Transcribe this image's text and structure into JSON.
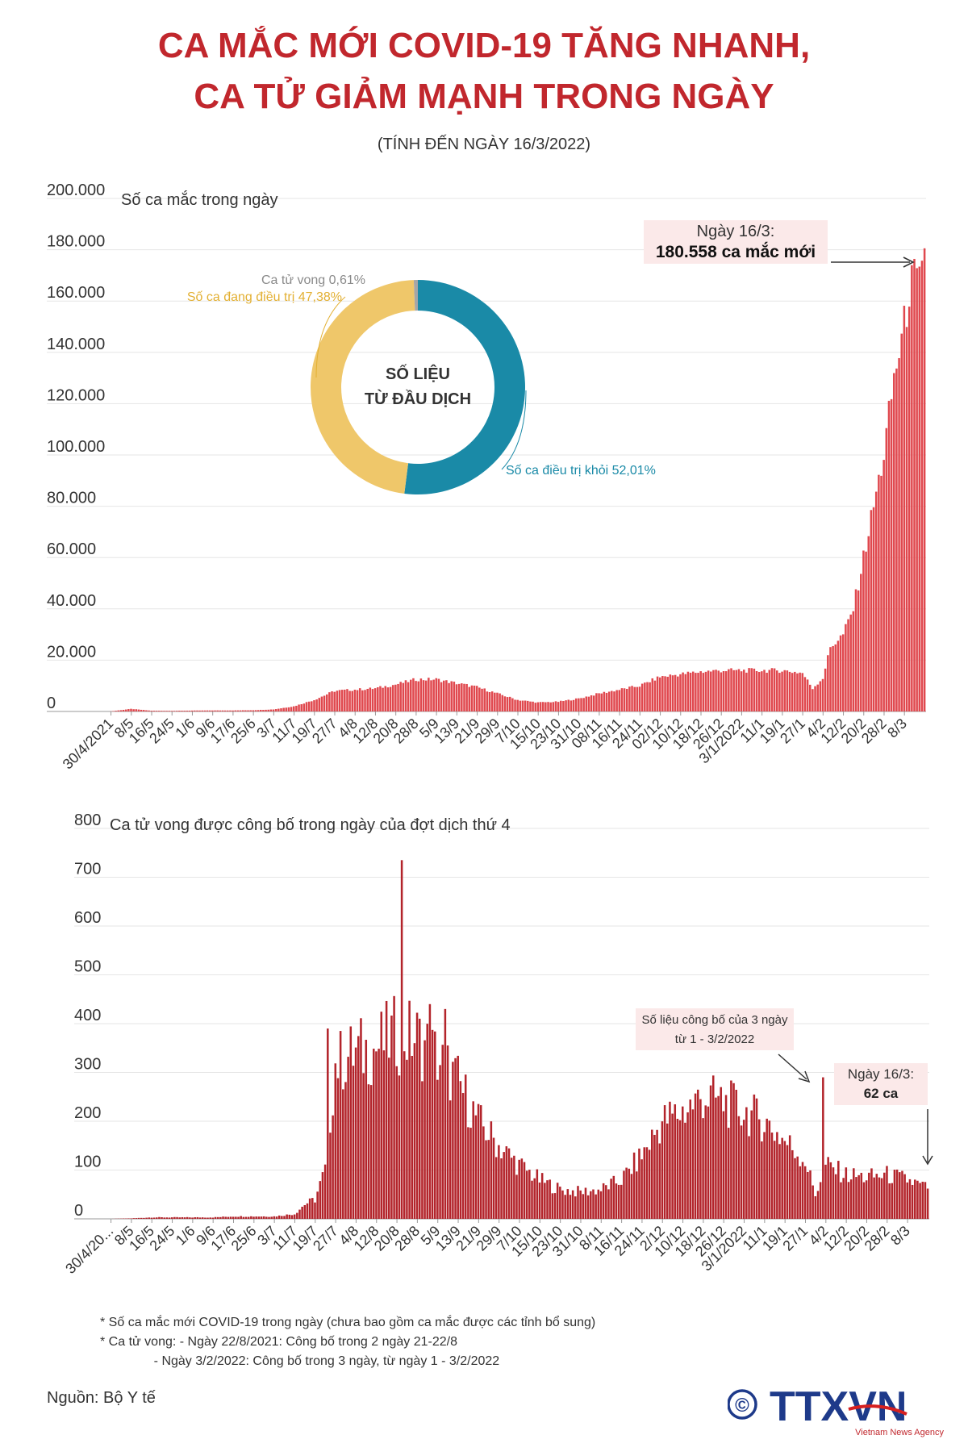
{
  "header": {
    "title_line1": "CA MẮC MỚI COVID-19 TĂNG NHANH,",
    "title_line2": "CA TỬ GIẢM MẠNH TRONG NGÀY",
    "subtitle": "(TÍNH ĐẾN NGÀY 16/3/2022)"
  },
  "colors": {
    "title": "#c1272d",
    "bar_cases": "#e0484e",
    "bar_deaths": "#b3242b",
    "donut_recovered": "#1a8aa7",
    "donut_treating": "#efc76a",
    "donut_death": "#a6a6a6"
  },
  "donut": {
    "center_line1": "SỐ LIỆU",
    "center_line2": "TỪ ĐẦU DỊCH",
    "labels": {
      "death": "Ca tử vong 0,61%",
      "treating": "Số ca đang điều trị 47,38%",
      "recovered": "Số ca điều trị khỏi 52,01%"
    }
  },
  "chart_data": [
    {
      "type": "bar",
      "title": "Số ca mắc trong ngày",
      "ylim": [
        0,
        200000
      ],
      "y_ticks": [
        "0",
        "20.000",
        "40.000",
        "60.000",
        "80.000",
        "100.000",
        "120.000",
        "140.000",
        "160.000",
        "180.000",
        "200.000"
      ],
      "x_start": "30/4/2021",
      "x_end": "16/3/2022",
      "x_tick_labels": [
        "30/4/2021",
        "8/5",
        "16/5",
        "24/5",
        "1/6",
        "9/6",
        "17/6",
        "25/6",
        "3/7",
        "11/7",
        "19/7",
        "27/7",
        "4/8",
        "12/8",
        "20/8",
        "28/8",
        "5/9",
        "13/9",
        "21/9",
        "29/9",
        "7/10",
        "15/10",
        "23/10",
        "31/10",
        "08/11",
        "16/11",
        "24/11",
        "02/12",
        "10/12",
        "18/12",
        "26/12",
        "3/1/2022",
        "11/1",
        "19/1",
        "27/1",
        "4/2",
        "12/2",
        "20/2",
        "28/2",
        "8/3"
      ],
      "anchor_values": [
        [
          "30/4/2021",
          50
        ],
        [
          "8/5",
          1000
        ],
        [
          "16/5",
          300
        ],
        [
          "24/5",
          250
        ],
        [
          "1/6",
          350
        ],
        [
          "9/6",
          400
        ],
        [
          "17/6",
          400
        ],
        [
          "25/6",
          500
        ],
        [
          "3/7",
          800
        ],
        [
          "11/7",
          2000
        ],
        [
          "19/7",
          4500
        ],
        [
          "27/7",
          8000
        ],
        [
          "4/8",
          8500
        ],
        [
          "12/8",
          9000
        ],
        [
          "20/8",
          10500
        ],
        [
          "28/8",
          12500
        ],
        [
          "5/9",
          12500
        ],
        [
          "13/9",
          11000
        ],
        [
          "21/9",
          9500
        ],
        [
          "29/9",
          7000
        ],
        [
          "7/10",
          4500
        ],
        [
          "15/10",
          3500
        ],
        [
          "23/10",
          3800
        ],
        [
          "31/10",
          5000
        ],
        [
          "08/11",
          7000
        ],
        [
          "16/11",
          8500
        ],
        [
          "24/11",
          10000
        ],
        [
          "02/12",
          13500
        ],
        [
          "10/12",
          14500
        ],
        [
          "18/12",
          15500
        ],
        [
          "26/12",
          16000
        ],
        [
          "3/1/2022",
          16000
        ],
        [
          "11/1",
          16000
        ],
        [
          "19/1",
          16000
        ],
        [
          "27/1",
          15000
        ],
        [
          "31/1",
          9000
        ],
        [
          "4/2",
          13000
        ],
        [
          "7/2",
          25000
        ],
        [
          "12/2",
          30000
        ],
        [
          "16/2",
          40000
        ],
        [
          "20/2",
          60000
        ],
        [
          "24/2",
          80000
        ],
        [
          "28/2",
          100000
        ],
        [
          "4/3",
          130000
        ],
        [
          "8/3",
          150000
        ],
        [
          "10/3",
          165000
        ],
        [
          "12/3",
          168000
        ],
        [
          "14/3",
          165000
        ],
        [
          "15/3",
          170000
        ],
        [
          "16/3",
          180558
        ]
      ],
      "annotation": {
        "label_line1": "Ngày 16/3:",
        "label_line2": "180.558 ca mắc mới"
      }
    },
    {
      "type": "bar",
      "title": "Ca tử vong được công bố trong ngày của đợt dịch thứ 4",
      "ylim": [
        0,
        800
      ],
      "y_ticks": [
        "0",
        "100",
        "200",
        "300",
        "400",
        "500",
        "600",
        "700",
        "800"
      ],
      "x_start": "30/4/2021",
      "x_end": "16/3/2022",
      "x_tick_labels": [
        "30/4/20...",
        "8/5",
        "16/5",
        "24/5",
        "1/6",
        "9/6",
        "17/6",
        "25/6",
        "3/7",
        "11/7",
        "19/7",
        "27/7",
        "4/8",
        "12/8",
        "20/8",
        "28/8",
        "5/9",
        "13/9",
        "21/9",
        "29/9",
        "7/10",
        "15/10",
        "23/10",
        "31/10",
        "8/11",
        "16/11",
        "24/11",
        "2/12",
        "10/12",
        "18/12",
        "26/12",
        "3/1/2022",
        "11/1",
        "19/1",
        "27/1",
        "4/2",
        "12/2",
        "20/2",
        "28/2",
        "8/3"
      ],
      "anchor_values": [
        [
          "30/4/2021",
          0
        ],
        [
          "8/5",
          1
        ],
        [
          "16/5",
          3
        ],
        [
          "24/5",
          3
        ],
        [
          "1/6",
          3
        ],
        [
          "9/6",
          3
        ],
        [
          "17/6",
          5
        ],
        [
          "25/6",
          5
        ],
        [
          "3/7",
          5
        ],
        [
          "11/7",
          10
        ],
        [
          "15/7",
          30
        ],
        [
          "19/7",
          40
        ],
        [
          "23/7",
          100
        ],
        [
          "27/7",
          320
        ],
        [
          "4/8",
          340
        ],
        [
          "12/8",
          350
        ],
        [
          "20/8",
          380
        ],
        [
          "28/8",
          370
        ],
        [
          "5/9",
          330
        ],
        [
          "13/9",
          280
        ],
        [
          "21/9",
          200
        ],
        [
          "29/9",
          150
        ],
        [
          "7/10",
          110
        ],
        [
          "15/10",
          80
        ],
        [
          "23/10",
          60
        ],
        [
          "31/10",
          55
        ],
        [
          "8/11",
          60
        ],
        [
          "16/11",
          80
        ],
        [
          "24/11",
          130
        ],
        [
          "2/12",
          200
        ],
        [
          "10/12",
          220
        ],
        [
          "18/12",
          250
        ],
        [
          "26/12",
          240
        ],
        [
          "3/1/2022",
          220
        ],
        [
          "11/1",
          200
        ],
        [
          "19/1",
          160
        ],
        [
          "27/1",
          120
        ],
        [
          "31/1",
          50
        ],
        [
          "4/2",
          110
        ],
        [
          "12/2",
          90
        ],
        [
          "20/2",
          85
        ],
        [
          "28/2",
          90
        ],
        [
          "8/3",
          80
        ],
        [
          "16/3",
          62
        ]
      ],
      "spikes": [
        [
          "22/8",
          735
        ],
        [
          "3/2/2022",
          290
        ],
        [
          "24/7",
          390
        ],
        [
          "29/7",
          385
        ],
        [
          "2/9",
          440
        ],
        [
          "8/9",
          430
        ]
      ],
      "annotations": {
        "spike_note_line1": "Số liệu công bố của 3 ngày",
        "spike_note_line2": "từ 1 - 3/2/2022",
        "last_line1": "Ngày 16/3:",
        "last_line2": "62 ca"
      }
    }
  ],
  "footnotes": {
    "line1": "* Số ca mắc mới COVID-19 trong ngày (chưa bao gồm ca mắc được các tỉnh bổ sung)",
    "line2": "* Ca tử vong: - Ngày 22/8/2021: Công bố trong 2 ngày 21-22/8",
    "line3": "               - Ngày 3/2/2022: Công bố trong 3 ngày, từ ngày 1 - 3/2/2022"
  },
  "source": "Nguồn: Bộ Y tế",
  "logo": {
    "copyright": "©",
    "brand": "TTXVN",
    "tagline": "Vietnam News Agency"
  }
}
